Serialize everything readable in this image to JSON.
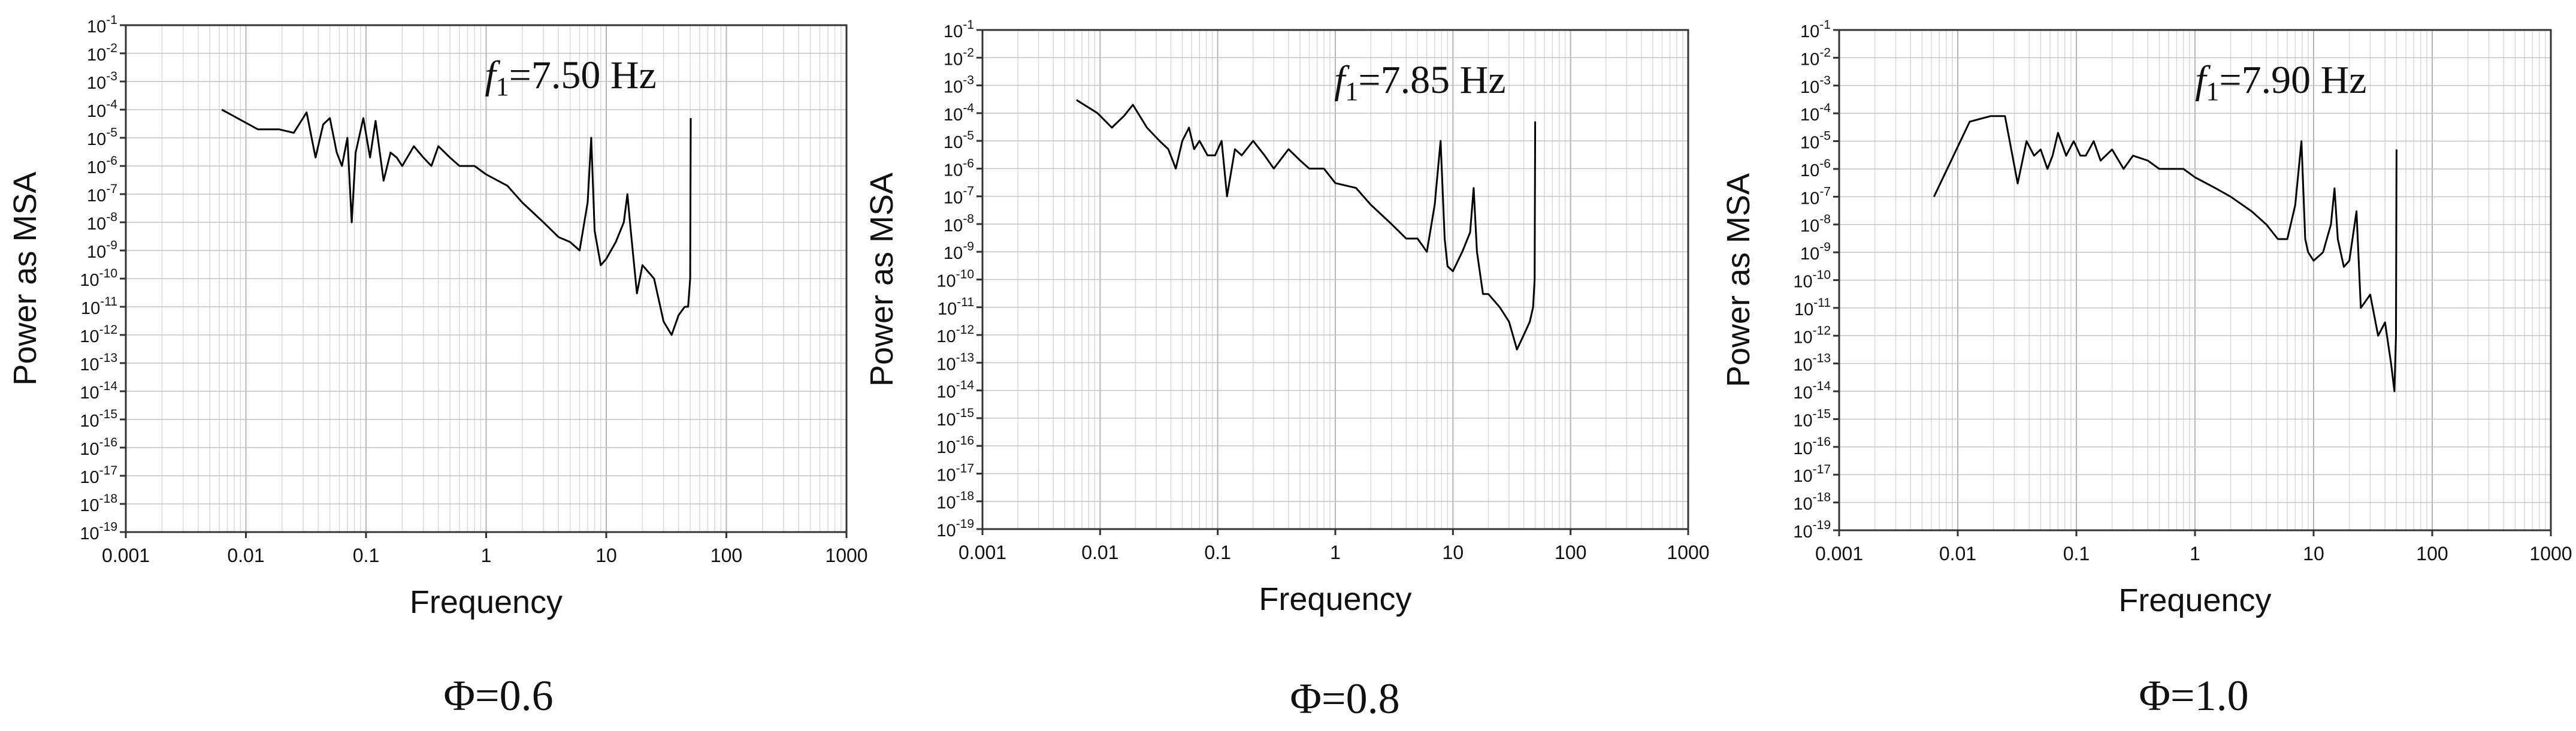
{
  "chart_data": [
    {
      "type": "line",
      "xlabel": "Frequency",
      "ylabel": "Power as MSA",
      "x_scale": "log",
      "y_scale": "log",
      "xlim": [
        0.001,
        1000
      ],
      "ylim": [
        1e-19,
        0.1
      ],
      "x_ticks": [
        "0.001",
        "0.01",
        "0.1",
        "1",
        "10",
        "100",
        "1000"
      ],
      "y_tick_exponents": [
        -1,
        -2,
        -3,
        -4,
        -5,
        -6,
        -7,
        -8,
        -9,
        -10,
        -11,
        -12,
        -13,
        -14,
        -15,
        -16,
        -17,
        -18,
        -19
      ],
      "grid": true,
      "peak_label_italic": "f",
      "peak_label_sub": "1",
      "peak_label_rest": "=7.50 Hz",
      "peak_frequency_hz": 7.5,
      "caption": "Φ=0.6",
      "series": [
        {
          "color": "#000000",
          "x": [
            0.0063,
            0.0126,
            0.019,
            0.025,
            0.032,
            0.038,
            0.044,
            0.05,
            0.057,
            0.063,
            0.07,
            0.076,
            0.082,
            0.095,
            0.108,
            0.12,
            0.14,
            0.16,
            0.18,
            0.2,
            0.25,
            0.3,
            0.35,
            0.4,
            0.5,
            0.6,
            0.8,
            1.0,
            1.5,
            2,
            3,
            4,
            5,
            6,
            7,
            7.5,
            8,
            9,
            10,
            12,
            14,
            15,
            16,
            18,
            20,
            25,
            30,
            35,
            40,
            45,
            48,
            50,
            50.5
          ],
          "y": [
            0.0001,
            2e-05,
            2e-05,
            1.5e-05,
            8e-05,
            2e-06,
            3e-05,
            5e-05,
            3e-06,
            1e-06,
            1e-05,
            1e-08,
            3e-06,
            5e-05,
            2e-06,
            4e-05,
            3e-07,
            3e-06,
            2e-06,
            1e-06,
            5e-06,
            2e-06,
            1e-06,
            5e-06,
            2e-06,
            1e-06,
            1e-06,
            5e-07,
            2e-07,
            5e-08,
            1e-08,
            3e-09,
            2e-09,
            1e-09,
            5e-08,
            1e-05,
            5e-09,
            3e-10,
            5e-10,
            2e-09,
            1e-08,
            1e-07,
            5e-09,
            3e-11,
            3e-10,
            1e-10,
            3e-12,
            1e-12,
            5e-12,
            1e-11,
            1e-11,
            1e-10,
            5e-05
          ]
        }
      ]
    },
    {
      "type": "line",
      "xlabel": "Frequency",
      "ylabel": "Power as MSA",
      "x_scale": "log",
      "y_scale": "log",
      "xlim": [
        0.001,
        1000
      ],
      "ylim": [
        1e-19,
        0.1
      ],
      "x_ticks": [
        "0.001",
        "0.01",
        "0.1",
        "1",
        "10",
        "100",
        "1000"
      ],
      "y_tick_exponents": [
        -1,
        -2,
        -3,
        -4,
        -5,
        -6,
        -7,
        -8,
        -9,
        -10,
        -11,
        -12,
        -13,
        -14,
        -15,
        -16,
        -17,
        -18,
        -19
      ],
      "grid": true,
      "peak_label_italic": "f",
      "peak_label_sub": "1",
      "peak_label_rest": "=7.85 Hz",
      "peak_frequency_hz": 7.85,
      "caption": "Φ=0.8",
      "series": [
        {
          "color": "#000000",
          "x": [
            0.0063,
            0.0095,
            0.0126,
            0.016,
            0.019,
            0.025,
            0.032,
            0.038,
            0.044,
            0.05,
            0.057,
            0.063,
            0.07,
            0.082,
            0.095,
            0.108,
            0.12,
            0.14,
            0.16,
            0.2,
            0.25,
            0.3,
            0.4,
            0.5,
            0.6,
            0.8,
            1.0,
            1.5,
            2,
            3,
            4,
            5,
            6,
            7,
            7.85,
            8.5,
            9,
            10,
            12,
            14,
            15,
            16,
            18,
            20,
            25,
            30,
            35,
            40,
            45,
            48,
            49.5,
            50
          ],
          "y": [
            0.0003,
            0.0001,
            3e-05,
            8e-05,
            0.0002,
            3e-05,
            1e-05,
            5e-06,
            1e-06,
            1e-05,
            3e-05,
            5e-06,
            1e-05,
            3e-06,
            3e-06,
            1e-05,
            1e-07,
            5e-06,
            3e-06,
            1e-05,
            3e-06,
            1e-06,
            5e-06,
            2e-06,
            1e-06,
            1e-06,
            3e-07,
            2e-07,
            5e-08,
            1e-08,
            3e-09,
            3e-09,
            1e-09,
            5e-08,
            1e-05,
            3e-09,
            3e-10,
            2e-10,
            1e-09,
            5e-09,
            2e-07,
            1e-09,
            3e-11,
            3e-11,
            1e-11,
            3e-12,
            3e-13,
            1e-12,
            3e-12,
            1e-11,
            1e-10,
            5e-05
          ]
        }
      ]
    },
    {
      "type": "line",
      "xlabel": "Frequency",
      "ylabel": "Power as MSA",
      "x_scale": "log",
      "y_scale": "log",
      "xlim": [
        0.001,
        1000
      ],
      "ylim": [
        1e-19,
        0.1
      ],
      "x_ticks": [
        "0.001",
        "0.01",
        "0.1",
        "1",
        "10",
        "100",
        "1000"
      ],
      "y_tick_exponents": [
        -1,
        -2,
        -3,
        -4,
        -5,
        -6,
        -7,
        -8,
        -9,
        -10,
        -11,
        -12,
        -13,
        -14,
        -15,
        -16,
        -17,
        -18,
        -19
      ],
      "grid": true,
      "peak_label_italic": "f",
      "peak_label_sub": "1",
      "peak_label_rest": "=7.90 Hz",
      "peak_frequency_hz": 7.9,
      "caption": "Φ=1.0",
      "series": [
        {
          "color": "#000000",
          "x": [
            0.0063,
            0.0126,
            0.019,
            0.025,
            0.032,
            0.038,
            0.044,
            0.05,
            0.057,
            0.063,
            0.07,
            0.082,
            0.095,
            0.108,
            0.12,
            0.14,
            0.16,
            0.2,
            0.25,
            0.3,
            0.4,
            0.5,
            0.6,
            0.8,
            1.0,
            1.5,
            2,
            3,
            4,
            5,
            6,
            7,
            7.9,
            8.5,
            9,
            10,
            12,
            14,
            15,
            16,
            18,
            20,
            23,
            25,
            30,
            35,
            40,
            45,
            48,
            49.5,
            50
          ],
          "y": [
            1e-07,
            5e-05,
            8e-05,
            8e-05,
            3e-07,
            1e-05,
            3e-06,
            5e-06,
            1e-06,
            3e-06,
            2e-05,
            3e-06,
            1e-05,
            3e-06,
            3e-06,
            1e-05,
            2e-06,
            5e-06,
            1e-06,
            3e-06,
            2e-06,
            1e-06,
            1e-06,
            1e-06,
            5e-07,
            2e-07,
            1e-07,
            3e-08,
            1e-08,
            3e-09,
            3e-09,
            5e-08,
            1e-05,
            3e-09,
            1e-09,
            5e-10,
            1e-09,
            1e-08,
            2e-07,
            3e-09,
            3e-10,
            5e-10,
            3e-08,
            1e-11,
            3e-11,
            1e-12,
            3e-12,
            1e-13,
            1e-14,
            1e-12,
            5e-06
          ]
        }
      ]
    }
  ]
}
